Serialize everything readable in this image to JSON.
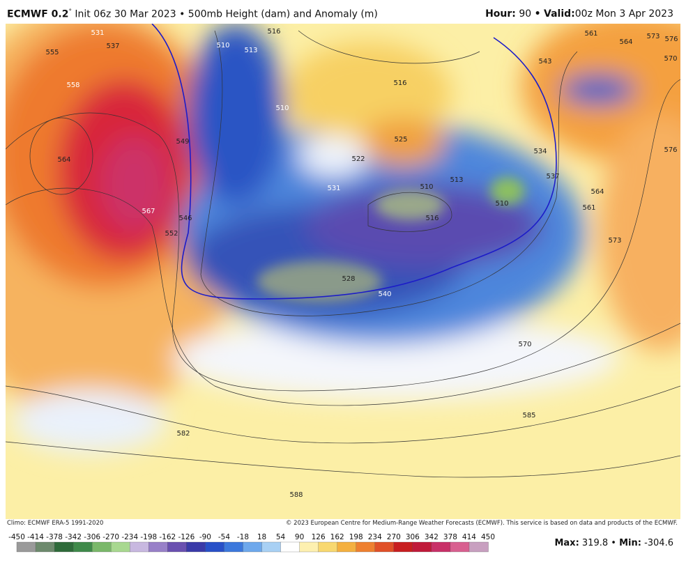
{
  "header": {
    "model": "ECMWF 0.2",
    "degree": "°",
    "init": "Init 06z 30 Mar 2023",
    "separator": "•",
    "product": "500mb Height (dam) and Anomaly (m)",
    "hour_label": "Hour:",
    "hour": "90",
    "valid_label": "Valid:",
    "valid": "00z Mon 3 Apr 2023"
  },
  "footer": {
    "climo": "Climo: ECMWF ERA-5 1991-2020",
    "copyright": "© 2023 European Centre for Medium-Range Weather Forecasts (ECMWF). This service is based on data and products of the ECMWF.",
    "max_label": "Max:",
    "max": "319.8",
    "min_label": "Min:",
    "min": "-304.6"
  },
  "contour_labels": [
    "531",
    "537",
    "555",
    "558",
    "564",
    "567",
    "552",
    "546",
    "549",
    "510",
    "513",
    "516",
    "510",
    "516",
    "525",
    "522",
    "531",
    "510",
    "513",
    "516",
    "510",
    "528",
    "540",
    "570",
    "585",
    "582",
    "588",
    "561",
    "564",
    "573",
    "576",
    "570",
    "543",
    "534",
    "537",
    "561",
    "564",
    "573",
    "576"
  ],
  "colorbar": {
    "ticks": [
      "-450",
      "-414",
      "-378",
      "-342",
      "-306",
      "-270",
      "-234",
      "-198",
      "-162",
      "-126",
      "-90",
      "-54",
      "-18",
      "18",
      "54",
      "90",
      "126",
      "162",
      "198",
      "234",
      "270",
      "306",
      "342",
      "378",
      "414",
      "450"
    ]
  }
}
